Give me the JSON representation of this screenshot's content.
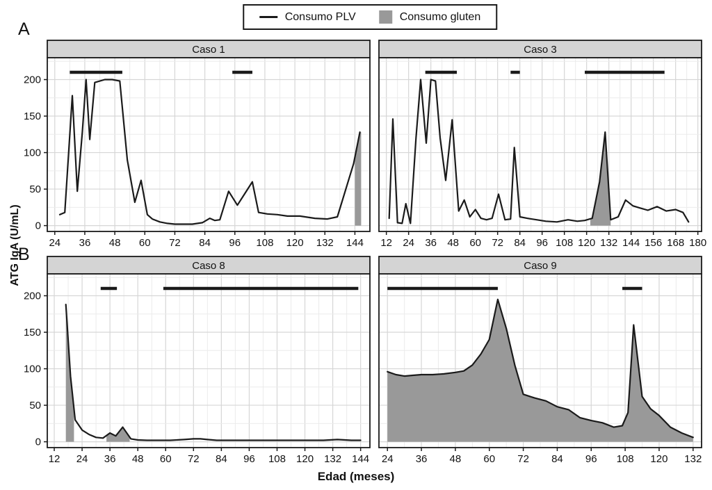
{
  "legend": {
    "plv_label": "Consumo PLV",
    "gluten_label": "Consumo gluten"
  },
  "section_labels": {
    "a": "A",
    "b": "B"
  },
  "axis": {
    "y_title": "ATG IgA (U/mL)",
    "x_title": "Edad (meses)",
    "y_ticks": [
      0,
      50,
      100,
      150,
      200
    ]
  },
  "colors": {
    "line": "#1a1a1a",
    "gluten_fill": "#999999",
    "strip_bg": "#d4d4d4",
    "grid_major": "#d6d6d6",
    "grid_minor": "#ebebeb",
    "panel_border": "#1a1a1a"
  },
  "chart_data": [
    {
      "type": "line",
      "title": "Caso 1",
      "row": 0,
      "col": 0,
      "xlim": [
        21,
        150
      ],
      "ylim": [
        0,
        230
      ],
      "x_ticks": [
        24,
        36,
        48,
        60,
        72,
        84,
        96,
        108,
        120,
        132,
        144
      ],
      "x": [
        26,
        28,
        31,
        33,
        35,
        36.5,
        38,
        40,
        44,
        47,
        50,
        53,
        56,
        58.5,
        61,
        63,
        66,
        69,
        72,
        75,
        79,
        83,
        86,
        88,
        90,
        93.5,
        97,
        100,
        103,
        105.5,
        109,
        113,
        117,
        122,
        128,
        133,
        137,
        143.5,
        146
      ],
      "y": [
        15,
        18,
        178,
        47,
        128,
        200,
        118,
        196,
        200,
        200,
        198,
        90,
        32,
        62,
        15,
        9,
        5,
        3,
        2,
        2,
        2,
        4,
        10,
        7,
        8,
        47,
        28,
        44,
        60,
        18,
        16,
        15,
        13,
        13,
        10,
        9,
        12,
        85,
        128
      ],
      "gluten_regions": [
        [
          144,
          146.5
        ]
      ],
      "plv_segments": [
        [
          30,
          51
        ],
        [
          95,
          103
        ]
      ],
      "plv_y": 210
    },
    {
      "type": "line",
      "title": "Caso 3",
      "row": 0,
      "col": 1,
      "xlim": [
        8,
        182
      ],
      "ylim": [
        0,
        230
      ],
      "x_ticks": [
        12,
        24,
        36,
        48,
        60,
        72,
        84,
        96,
        108,
        120,
        132,
        144,
        156,
        168,
        180
      ],
      "x": [
        13.5,
        15.5,
        18,
        20.5,
        22.5,
        25,
        28,
        30.5,
        33.5,
        36,
        38.5,
        41,
        44,
        47.5,
        51,
        54,
        57,
        60,
        63,
        66,
        69,
        72.5,
        76,
        79,
        81,
        84,
        88,
        93,
        98,
        104,
        110,
        115,
        119,
        123,
        127,
        130,
        133,
        137,
        141,
        145,
        149,
        153,
        158,
        163,
        168,
        172,
        175
      ],
      "y": [
        10,
        146,
        4,
        3,
        30,
        3,
        120,
        200,
        113,
        200,
        198,
        120,
        62,
        145,
        20,
        35,
        12,
        22,
        10,
        8,
        10,
        43,
        8,
        9,
        107,
        12,
        10,
        8,
        6,
        5,
        8,
        6,
        7,
        10,
        60,
        128,
        8,
        12,
        35,
        27,
        24,
        21,
        26,
        20,
        22,
        18,
        5
      ],
      "gluten_regions": [
        [
          122,
          133
        ]
      ],
      "plv_segments": [
        [
          33,
          50
        ],
        [
          79,
          84
        ],
        [
          119,
          162
        ]
      ],
      "plv_y": 210
    },
    {
      "type": "line",
      "title": "Caso 8",
      "row": 1,
      "col": 0,
      "xlim": [
        9,
        148
      ],
      "ylim": [
        0,
        230
      ],
      "x_ticks": [
        12,
        24,
        36,
        48,
        60,
        72,
        84,
        96,
        108,
        120,
        132,
        144
      ],
      "x": [
        17,
        19,
        21,
        24,
        27,
        30,
        33,
        36,
        38.5,
        41.5,
        45,
        48,
        52,
        57,
        62,
        68,
        72,
        75,
        78,
        82,
        86,
        92,
        98,
        104,
        110,
        116,
        122,
        128,
        134,
        140,
        144
      ],
      "y": [
        188,
        90,
        30,
        16,
        10,
        6,
        5,
        12,
        8,
        20,
        4,
        2.5,
        2,
        2,
        2,
        3,
        4,
        4,
        3,
        2,
        2,
        2,
        2,
        2,
        2,
        2,
        2,
        2,
        3,
        2,
        2
      ],
      "gluten_regions": [
        [
          17,
          20.5
        ],
        [
          34.5,
          44.5
        ]
      ],
      "plv_segments": [
        [
          32,
          39
        ],
        [
          59,
          143
        ]
      ],
      "plv_y": 210
    },
    {
      "type": "line",
      "title": "Caso 9",
      "row": 1,
      "col": 1,
      "xlim": [
        21,
        135
      ],
      "ylim": [
        0,
        230
      ],
      "x_ticks": [
        24,
        36,
        48,
        60,
        72,
        84,
        96,
        108,
        120,
        132
      ],
      "x": [
        24,
        27,
        30,
        33,
        36,
        40,
        44,
        48,
        51,
        54,
        57,
        60,
        63,
        66,
        69,
        72,
        76,
        80,
        84,
        88,
        92,
        96,
        100,
        104,
        107,
        109,
        111,
        114,
        117,
        120,
        124,
        128,
        132
      ],
      "y": [
        96,
        92,
        90,
        91,
        92,
        92,
        93,
        95,
        97,
        105,
        120,
        140,
        195,
        155,
        105,
        65,
        60,
        56,
        48,
        44,
        33,
        29,
        26,
        20,
        22,
        40,
        160,
        62,
        45,
        36,
        20,
        12,
        6
      ],
      "gluten_regions": [
        [
          24,
          132
        ]
      ],
      "plv_segments": [
        [
          24,
          63
        ],
        [
          107,
          114
        ]
      ],
      "plv_y": 210
    }
  ]
}
